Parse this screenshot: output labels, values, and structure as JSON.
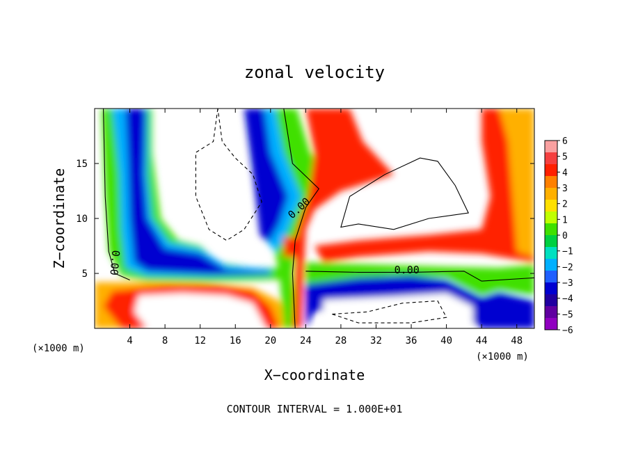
{
  "chart_data": {
    "type": "heatmap",
    "title": "zonal velocity",
    "xlabel": "X−coordinate",
    "ylabel": "Z−coordinate",
    "x_unit_left": "(×1000 m)",
    "x_unit_right": "(×1000 m)",
    "footer": "CONTOUR INTERVAL = 1.000E+01",
    "xlim": [
      0,
      50
    ],
    "ylim": [
      0,
      20
    ],
    "x_ticks": [
      4,
      8,
      12,
      16,
      20,
      24,
      28,
      32,
      36,
      40,
      44,
      48
    ],
    "x_tick_labels": [
      "4",
      "8",
      "12",
      "16",
      "20",
      "24",
      "28",
      "32",
      "36",
      "40",
      "44",
      "48"
    ],
    "y_ticks": [
      5,
      10,
      15
    ],
    "y_tick_labels": [
      "5",
      "10",
      "15"
    ],
    "colorbar": {
      "min": -6,
      "max": 6,
      "levels": [
        "6",
        "5",
        "4",
        "3",
        "2",
        "1",
        "0",
        "−1",
        "−2",
        "−3",
        "−4",
        "−5",
        "−6"
      ],
      "colors": [
        "#f9a0a0",
        "#f54040",
        "#ff2000",
        "#ff8000",
        "#ffb000",
        "#ffe000",
        "#c0ff00",
        "#40e000",
        "#00d040",
        "#00e0c0",
        "#00b0ff",
        "#2060ff",
        "#0000d0",
        "#2000a0",
        "#6000a0",
        "#9000c0"
      ]
    },
    "contour_labels": [
      {
        "text": "0.00",
        "x": 23.5,
        "y": 10.7,
        "rotate": -42
      },
      {
        "text": "0.00",
        "x": 35.5,
        "y": 5.0,
        "rotate": 0
      },
      {
        "text": "0.00",
        "x": 1.9,
        "y": 6.0,
        "rotate": 95
      }
    ],
    "grid": false,
    "legend": "colorbar-right"
  }
}
